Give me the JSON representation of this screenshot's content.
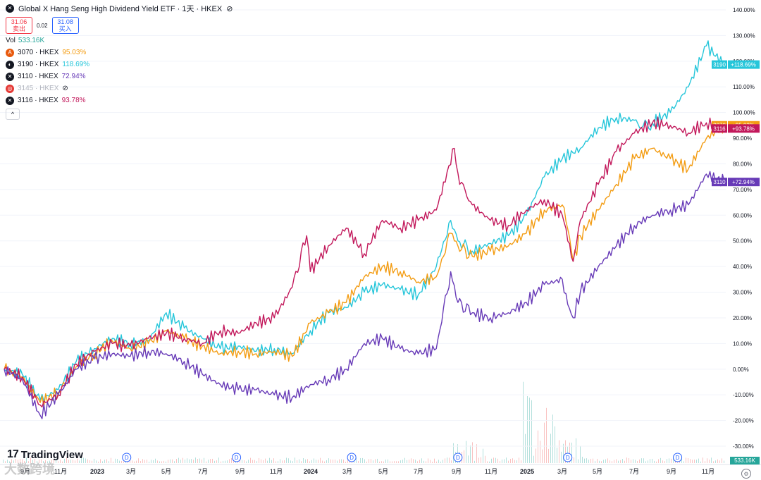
{
  "header": {
    "title": "Global X Hang Seng High Dividend Yield ETF · 1天 · HKEX",
    "sell_price": "31.06",
    "sell_label": "卖出",
    "spread": "0.02",
    "buy_price": "31.08",
    "buy_label": "买入",
    "vol_label": "Vol",
    "vol_value": "533.16K"
  },
  "legend": [
    {
      "symbol": "3070 · HKEX",
      "pct": "95.03%",
      "icon": "A",
      "icon_color": "#e8590c",
      "color": "#f39c12"
    },
    {
      "symbol": "3190 · HKEX",
      "pct": "118.69%",
      "icon": "◐",
      "icon_color": "#131722",
      "color": "#26c6da"
    },
    {
      "symbol": "3110 · HKEX",
      "pct": "72.94%",
      "icon": "✕",
      "icon_color": "#131722",
      "color": "#673ab7"
    },
    {
      "symbol": "3145 · HKEX",
      "pct": "",
      "icon": "◎",
      "icon_color": "#e53935",
      "color": "#b2b5be",
      "hidden": true
    },
    {
      "symbol": "3116 · HKEX",
      "pct": "93.78%",
      "icon": "✕",
      "icon_color": "#131722",
      "color": "#c2185b"
    }
  ],
  "collapse_label": "^",
  "logo_text": "TradingView",
  "watermark": "大数跨境",
  "volume_label": "533.16K",
  "colors": {
    "grid": "#f0f3fa",
    "axis_text": "#131722"
  },
  "chart_data": {
    "type": "line",
    "title": "Global X Hang Seng High Dividend Yield ETF · 1天 · HKEX",
    "y_unit": "%",
    "ylim": [
      -33,
      142
    ],
    "y_ticks": [
      140,
      130,
      120,
      110,
      100,
      90,
      80,
      70,
      60,
      50,
      40,
      30,
      20,
      10,
      0,
      -10,
      -20,
      -30
    ],
    "x_labels": [
      "9月",
      "11月",
      "2023",
      "3月",
      "5月",
      "7月",
      "9月",
      "11月",
      "2024",
      "3月",
      "5月",
      "7月",
      "9月",
      "11月",
      "2025",
      "3月",
      "5月",
      "7月",
      "9月",
      "11月"
    ],
    "x_range": [
      0,
      40
    ],
    "dividend_marker": "D",
    "dividend_x": [
      6.8,
      12.9,
      19.3,
      25.2,
      31.3,
      37.4
    ],
    "grid": true,
    "series": [
      {
        "name": "3190",
        "end_label": "+118.69%",
        "color": "#26c6da",
        "x": [
          0,
          1,
          2,
          3,
          4,
          5,
          6,
          7,
          8,
          9,
          10,
          11,
          12,
          13,
          14,
          15,
          16,
          17,
          18,
          19,
          20,
          21,
          22,
          23,
          24,
          24.8,
          25.2,
          26,
          27,
          28,
          29,
          30,
          31,
          32,
          33,
          34,
          35,
          35.5,
          36,
          37,
          38,
          39,
          40
        ],
        "values": [
          0,
          -2,
          -12,
          -8,
          3,
          8,
          12,
          10,
          11,
          22,
          16,
          12,
          8,
          9,
          7,
          8,
          6,
          15,
          22,
          24,
          30,
          33,
          31,
          29,
          40,
          58,
          50,
          46,
          49,
          52,
          60,
          75,
          82,
          86,
          94,
          98,
          97,
          95,
          96,
          100,
          110,
          126,
          118.69
        ]
      },
      {
        "name": "3070",
        "end_label": "+95.03%",
        "color": "#f39c12",
        "x": [
          0,
          1,
          2,
          3,
          4,
          5,
          6,
          7,
          8,
          9,
          10,
          11,
          12,
          13,
          14,
          15,
          16,
          17,
          18,
          19,
          20,
          21,
          22,
          23,
          24,
          24.8,
          25.2,
          26,
          27,
          28,
          29,
          30,
          31,
          31.6,
          32,
          33,
          34,
          35,
          36,
          37,
          38,
          39,
          40
        ],
        "values": [
          0,
          -3,
          -13,
          -9,
          1,
          6,
          11,
          8,
          10,
          15,
          12,
          9,
          6,
          7,
          6,
          7,
          5,
          18,
          22,
          26,
          36,
          40,
          38,
          34,
          36,
          53,
          48,
          44,
          46,
          48,
          53,
          62,
          64,
          42,
          52,
          62,
          72,
          82,
          86,
          82,
          78,
          90,
          95.03
        ]
      },
      {
        "name": "3116",
        "end_label": "+93.78%",
        "color": "#c2185b",
        "x": [
          0,
          1,
          2,
          3,
          4,
          5,
          6,
          7,
          8,
          9,
          10,
          11,
          12,
          13,
          14,
          15,
          16,
          16.8,
          17,
          18,
          19,
          20,
          21,
          22,
          23,
          24,
          25,
          25.3,
          26,
          27,
          28,
          29,
          30,
          31,
          31.6,
          32,
          33,
          34,
          35,
          36,
          37,
          38,
          39,
          40
        ],
        "values": [
          0,
          -3,
          -14,
          -10,
          2,
          7,
          10,
          9,
          12,
          14,
          12,
          10,
          15,
          14,
          18,
          20,
          32,
          52,
          38,
          48,
          55,
          45,
          58,
          55,
          58,
          62,
          86,
          72,
          64,
          58,
          56,
          62,
          66,
          60,
          42,
          58,
          72,
          85,
          92,
          96,
          95,
          92,
          96,
          93.78
        ]
      },
      {
        "name": "3110",
        "end_label": "+72.94%",
        "color": "#673ab7",
        "x": [
          0,
          1,
          2,
          3,
          4,
          5,
          6,
          7,
          8,
          9,
          10,
          11,
          12,
          13,
          14,
          15,
          16,
          17,
          18,
          19,
          20,
          21,
          22,
          23,
          24,
          24.8,
          25.2,
          26,
          27,
          28,
          29,
          30,
          31,
          31.6,
          32,
          33,
          34,
          35,
          36,
          37,
          38,
          39,
          40
        ],
        "values": [
          0,
          -4,
          -18,
          -10,
          0,
          4,
          6,
          5,
          7,
          6,
          3,
          -2,
          -6,
          -8,
          -8,
          -10,
          -11,
          -6,
          -4,
          0,
          10,
          12,
          8,
          6,
          8,
          38,
          26,
          22,
          20,
          22,
          26,
          33,
          35,
          20,
          30,
          40,
          48,
          56,
          60,
          62,
          64,
          76,
          72.94
        ]
      }
    ]
  }
}
